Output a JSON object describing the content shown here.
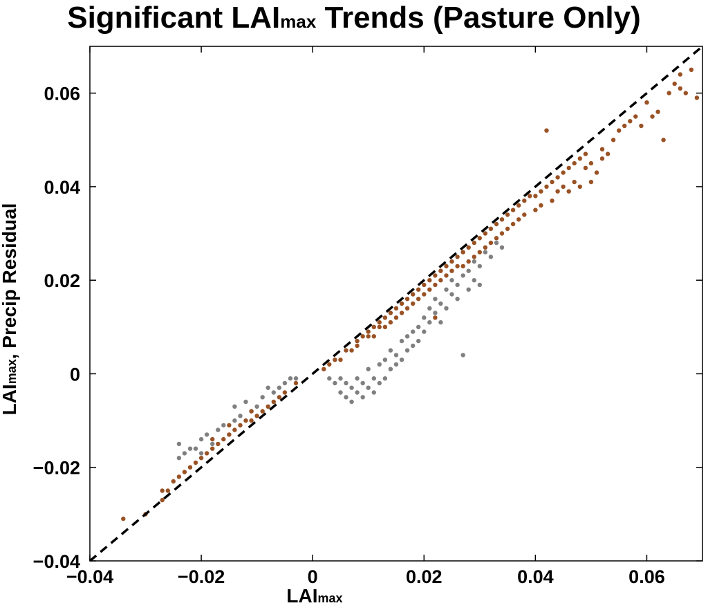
{
  "chart_data": {
    "type": "scatter",
    "title": {
      "main": "Significant LAI",
      "sub": "max",
      "rest": " Trends (Pasture Only)"
    },
    "xlabel": {
      "main": "LAI",
      "sub": "max"
    },
    "ylabel": {
      "main": "LAI",
      "sub": "max",
      "rest": ", Precip Residual"
    },
    "xlim": [
      -0.04,
      0.07
    ],
    "ylim": [
      -0.04,
      0.07
    ],
    "x_ticks": [
      -0.04,
      -0.02,
      0,
      0.02,
      0.04,
      0.06
    ],
    "y_ticks": [
      -0.04,
      -0.02,
      0,
      0.02,
      0.04,
      0.06
    ],
    "x_tick_labels": [
      "−0.04",
      "−0.02",
      "0",
      "0.02",
      "0.04",
      "0.06"
    ],
    "y_tick_labels": [
      "−0.04",
      "−0.02",
      "0",
      "0.02",
      "0.04",
      "0.06"
    ],
    "grid": false,
    "reference_line": {
      "style": "dashed",
      "color": "#000000",
      "points": [
        [
          -0.04,
          -0.04
        ],
        [
          0.07,
          0.07
        ]
      ]
    },
    "series": [
      {
        "color": "#808080",
        "points": [
          [
            -0.024,
            -0.015
          ],
          [
            -0.024,
            -0.018
          ],
          [
            -0.023,
            -0.017
          ],
          [
            -0.022,
            -0.016
          ],
          [
            -0.021,
            -0.016
          ],
          [
            -0.02,
            -0.014
          ],
          [
            -0.02,
            -0.017
          ],
          [
            -0.019,
            -0.013
          ],
          [
            -0.018,
            -0.015
          ],
          [
            -0.017,
            -0.012
          ],
          [
            -0.016,
            -0.011
          ],
          [
            -0.015,
            -0.013
          ],
          [
            -0.014,
            -0.007
          ],
          [
            -0.014,
            -0.01
          ],
          [
            -0.013,
            -0.009
          ],
          [
            -0.012,
            -0.006
          ],
          [
            -0.011,
            -0.008
          ],
          [
            -0.01,
            -0.007
          ],
          [
            -0.009,
            -0.005
          ],
          [
            -0.008,
            -0.003
          ],
          [
            -0.007,
            -0.004
          ],
          [
            -0.006,
            -0.003
          ],
          [
            -0.005,
            -0.002
          ],
          [
            -0.004,
            -0.001
          ],
          [
            -0.003,
            -0.001
          ],
          [
            0.003,
            -0.001
          ],
          [
            0.004,
            -0.002
          ],
          [
            0.005,
            -0.001
          ],
          [
            0.005,
            -0.004
          ],
          [
            0.006,
            -0.002
          ],
          [
            0.006,
            -0.005
          ],
          [
            0.007,
            -0.003
          ],
          [
            0.007,
            -0.006
          ],
          [
            0.008,
            -0.001
          ],
          [
            0.008,
            -0.004
          ],
          [
            0.009,
            -0.002
          ],
          [
            0.009,
            -0.005
          ],
          [
            0.01,
            0.001
          ],
          [
            0.01,
            -0.003
          ],
          [
            0.011,
            -0.001
          ],
          [
            0.011,
            -0.004
          ],
          [
            0.012,
            0.002
          ],
          [
            0.012,
            -0.002
          ],
          [
            0.013,
            0.003
          ],
          [
            0.013,
            -0.001
          ],
          [
            0.014,
            0.001
          ],
          [
            0.014,
            0.005
          ],
          [
            0.015,
            0.002
          ],
          [
            0.015,
            0.004
          ],
          [
            0.016,
            0.007
          ],
          [
            0.016,
            0.003
          ],
          [
            0.017,
            0.005
          ],
          [
            0.017,
            0.008
          ],
          [
            0.018,
            0.006
          ],
          [
            0.018,
            0.009
          ],
          [
            0.019,
            0.007
          ],
          [
            0.019,
            0.01
          ],
          [
            0.02,
            0.012
          ],
          [
            0.02,
            0.009
          ],
          [
            0.021,
            0.011
          ],
          [
            0.021,
            0.014
          ],
          [
            0.022,
            0.013
          ],
          [
            0.022,
            0.016
          ],
          [
            0.023,
            0.015
          ],
          [
            0.023,
            0.011
          ],
          [
            0.024,
            0.018
          ],
          [
            0.024,
            0.014
          ],
          [
            0.025,
            0.017
          ],
          [
            0.025,
            0.02
          ],
          [
            0.026,
            0.019
          ],
          [
            0.026,
            0.016
          ],
          [
            0.027,
            0.021
          ],
          [
            0.027,
            0.004
          ],
          [
            0.028,
            0.018
          ],
          [
            0.028,
            0.022
          ],
          [
            0.029,
            0.02
          ],
          [
            0.029,
            0.024
          ],
          [
            0.03,
            0.023
          ],
          [
            0.03,
            0.019
          ],
          [
            0.031,
            0.026
          ],
          [
            0.032,
            0.025
          ],
          [
            0.033,
            0.028
          ],
          [
            0.034,
            0.027
          ]
        ]
      },
      {
        "color": "#9a5224",
        "points": [
          [
            -0.034,
            -0.031
          ],
          [
            -0.03,
            -0.03
          ],
          [
            -0.027,
            -0.027
          ],
          [
            -0.027,
            -0.025
          ],
          [
            -0.026,
            -0.025
          ],
          [
            -0.025,
            -0.023
          ],
          [
            -0.024,
            -0.022
          ],
          [
            -0.023,
            -0.021
          ],
          [
            -0.022,
            -0.02
          ],
          [
            -0.021,
            -0.019
          ],
          [
            -0.02,
            -0.018
          ],
          [
            -0.019,
            -0.017
          ],
          [
            -0.018,
            -0.016
          ],
          [
            -0.018,
            -0.014
          ],
          [
            -0.017,
            -0.015
          ],
          [
            -0.016,
            -0.014
          ],
          [
            -0.015,
            -0.013
          ],
          [
            -0.015,
            -0.011
          ],
          [
            -0.014,
            -0.012
          ],
          [
            -0.013,
            -0.011
          ],
          [
            -0.012,
            -0.01
          ],
          [
            -0.011,
            -0.01
          ],
          [
            -0.011,
            -0.008
          ],
          [
            -0.01,
            -0.009
          ],
          [
            -0.009,
            -0.008
          ],
          [
            -0.008,
            -0.007
          ],
          [
            -0.007,
            -0.006
          ],
          [
            -0.006,
            -0.005
          ],
          [
            -0.005,
            -0.004
          ],
          [
            -0.003,
            -0.002
          ],
          [
            0.002,
            0.001
          ],
          [
            0.003,
            0.002
          ],
          [
            0.004,
            0.003
          ],
          [
            0.005,
            0.003
          ],
          [
            0.006,
            0.005
          ],
          [
            0.007,
            0.005
          ],
          [
            0.008,
            0.007
          ],
          [
            0.008,
            0.006
          ],
          [
            0.009,
            0.008
          ],
          [
            0.01,
            0.008
          ],
          [
            0.01,
            0.009
          ],
          [
            0.011,
            0.01
          ],
          [
            0.011,
            0.008
          ],
          [
            0.012,
            0.011
          ],
          [
            0.012,
            0.01
          ],
          [
            0.013,
            0.012
          ],
          [
            0.013,
            0.01
          ],
          [
            0.014,
            0.013
          ],
          [
            0.014,
            0.011
          ],
          [
            0.015,
            0.014
          ],
          [
            0.015,
            0.012
          ],
          [
            0.016,
            0.015
          ],
          [
            0.016,
            0.013
          ],
          [
            0.017,
            0.016
          ],
          [
            0.017,
            0.014
          ],
          [
            0.018,
            0.017
          ],
          [
            0.018,
            0.015
          ],
          [
            0.019,
            0.018
          ],
          [
            0.019,
            0.016
          ],
          [
            0.02,
            0.019
          ],
          [
            0.02,
            0.017
          ],
          [
            0.021,
            0.02
          ],
          [
            0.021,
            0.018
          ],
          [
            0.022,
            0.021
          ],
          [
            0.022,
            0.019
          ],
          [
            0.022,
            0.012
          ],
          [
            0.023,
            0.022
          ],
          [
            0.023,
            0.02
          ],
          [
            0.024,
            0.023
          ],
          [
            0.024,
            0.021
          ],
          [
            0.025,
            0.024
          ],
          [
            0.025,
            0.022
          ],
          [
            0.026,
            0.025
          ],
          [
            0.026,
            0.023
          ],
          [
            0.027,
            0.026
          ],
          [
            0.027,
            0.023
          ],
          [
            0.028,
            0.027
          ],
          [
            0.028,
            0.024
          ],
          [
            0.029,
            0.028
          ],
          [
            0.029,
            0.025
          ],
          [
            0.03,
            0.029
          ],
          [
            0.03,
            0.026
          ],
          [
            0.031,
            0.03
          ],
          [
            0.031,
            0.027
          ],
          [
            0.032,
            0.031
          ],
          [
            0.032,
            0.028
          ],
          [
            0.033,
            0.032
          ],
          [
            0.033,
            0.029
          ],
          [
            0.034,
            0.033
          ],
          [
            0.034,
            0.03
          ],
          [
            0.035,
            0.034
          ],
          [
            0.035,
            0.031
          ],
          [
            0.036,
            0.035
          ],
          [
            0.036,
            0.032
          ],
          [
            0.037,
            0.036
          ],
          [
            0.037,
            0.033
          ],
          [
            0.038,
            0.037
          ],
          [
            0.038,
            0.034
          ],
          [
            0.039,
            0.038
          ],
          [
            0.04,
            0.038
          ],
          [
            0.04,
            0.035
          ],
          [
            0.041,
            0.039
          ],
          [
            0.041,
            0.036
          ],
          [
            0.042,
            0.04
          ],
          [
            0.042,
            0.052
          ],
          [
            0.043,
            0.041
          ],
          [
            0.043,
            0.037
          ],
          [
            0.044,
            0.042
          ],
          [
            0.044,
            0.039
          ],
          [
            0.045,
            0.043
          ],
          [
            0.045,
            0.04
          ],
          [
            0.046,
            0.044
          ],
          [
            0.046,
            0.039
          ],
          [
            0.047,
            0.045
          ],
          [
            0.047,
            0.041
          ],
          [
            0.048,
            0.046
          ],
          [
            0.048,
            0.04
          ],
          [
            0.049,
            0.047
          ],
          [
            0.049,
            0.044
          ],
          [
            0.05,
            0.045
          ],
          [
            0.05,
            0.041
          ],
          [
            0.051,
            0.043
          ],
          [
            0.052,
            0.048
          ],
          [
            0.052,
            0.046
          ],
          [
            0.053,
            0.047
          ],
          [
            0.054,
            0.05
          ],
          [
            0.055,
            0.052
          ],
          [
            0.056,
            0.053
          ],
          [
            0.057,
            0.054
          ],
          [
            0.058,
            0.055
          ],
          [
            0.059,
            0.053
          ],
          [
            0.06,
            0.058
          ],
          [
            0.061,
            0.055
          ],
          [
            0.062,
            0.056
          ],
          [
            0.063,
            0.05
          ],
          [
            0.064,
            0.06
          ],
          [
            0.065,
            0.062
          ],
          [
            0.066,
            0.064
          ],
          [
            0.067,
            0.06
          ],
          [
            0.068,
            0.065
          ],
          [
            0.069,
            0.059
          ],
          [
            0.066,
            0.061
          ]
        ]
      }
    ]
  }
}
